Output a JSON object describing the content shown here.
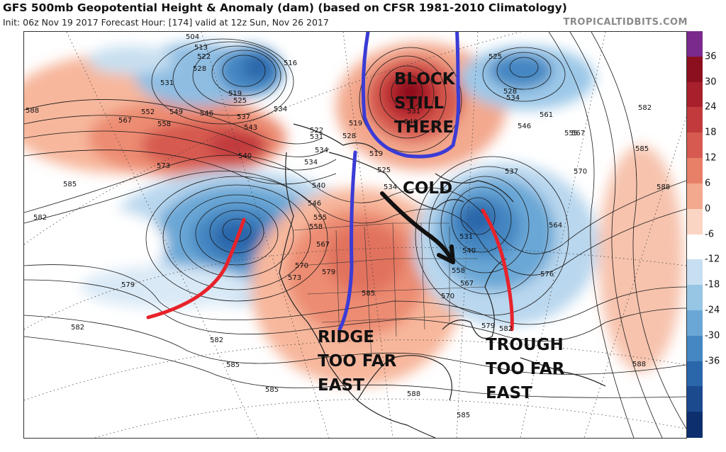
{
  "header": {
    "title": "GFS 500mb Geopotential Height & Anomaly (dam) (based on CFSR 1981-2010 Climatology)",
    "subtitle": "Init: 06z Nov 19 2017   Forecast Hour: [174]   valid at 12z Sun, Nov 26 2017",
    "source": "TROPICALTIDBITS.COM"
  },
  "annotations": {
    "block": [
      "BLOCK",
      "STILL",
      "THERE"
    ],
    "cold": "COLD",
    "ridge": [
      "RIDGE",
      "TOO FAR",
      "EAST"
    ],
    "trough": [
      "TROUGH",
      "TOO FAR",
      "EAST"
    ]
  },
  "contour_labels": [
    "504",
    "513",
    "522",
    "528",
    "531",
    "516",
    "525",
    "552",
    "549",
    "546",
    "537",
    "534",
    "519",
    "567",
    "558",
    "543",
    "540",
    "573",
    "588",
    "585",
    "582",
    "579",
    "570",
    "561",
    "564",
    "555",
    "576",
    "552",
    "519",
    "525",
    "531",
    "528",
    "534"
  ],
  "colorbar": {
    "ticks": [
      "36",
      "30",
      "24",
      "18",
      "12",
      "6",
      "0",
      "-6",
      "-12",
      "-18",
      "-24",
      "-30",
      "-36"
    ],
    "colors": [
      "#7a2a8c",
      "#8c0f1e",
      "#a8202c",
      "#c23a3c",
      "#d65a50",
      "#e88068",
      "#f3a98e",
      "#fbd5c3",
      "#ffffff",
      "#c7dff0",
      "#97c6e5",
      "#6aa7d6",
      "#4487c2",
      "#2a66aa",
      "#1b4a8f",
      "#0e2f6e"
    ]
  },
  "map": {
    "features": [
      "height-contours",
      "anomaly-shading",
      "coastlines",
      "state-borders",
      "lat-lon-grid"
    ]
  }
}
